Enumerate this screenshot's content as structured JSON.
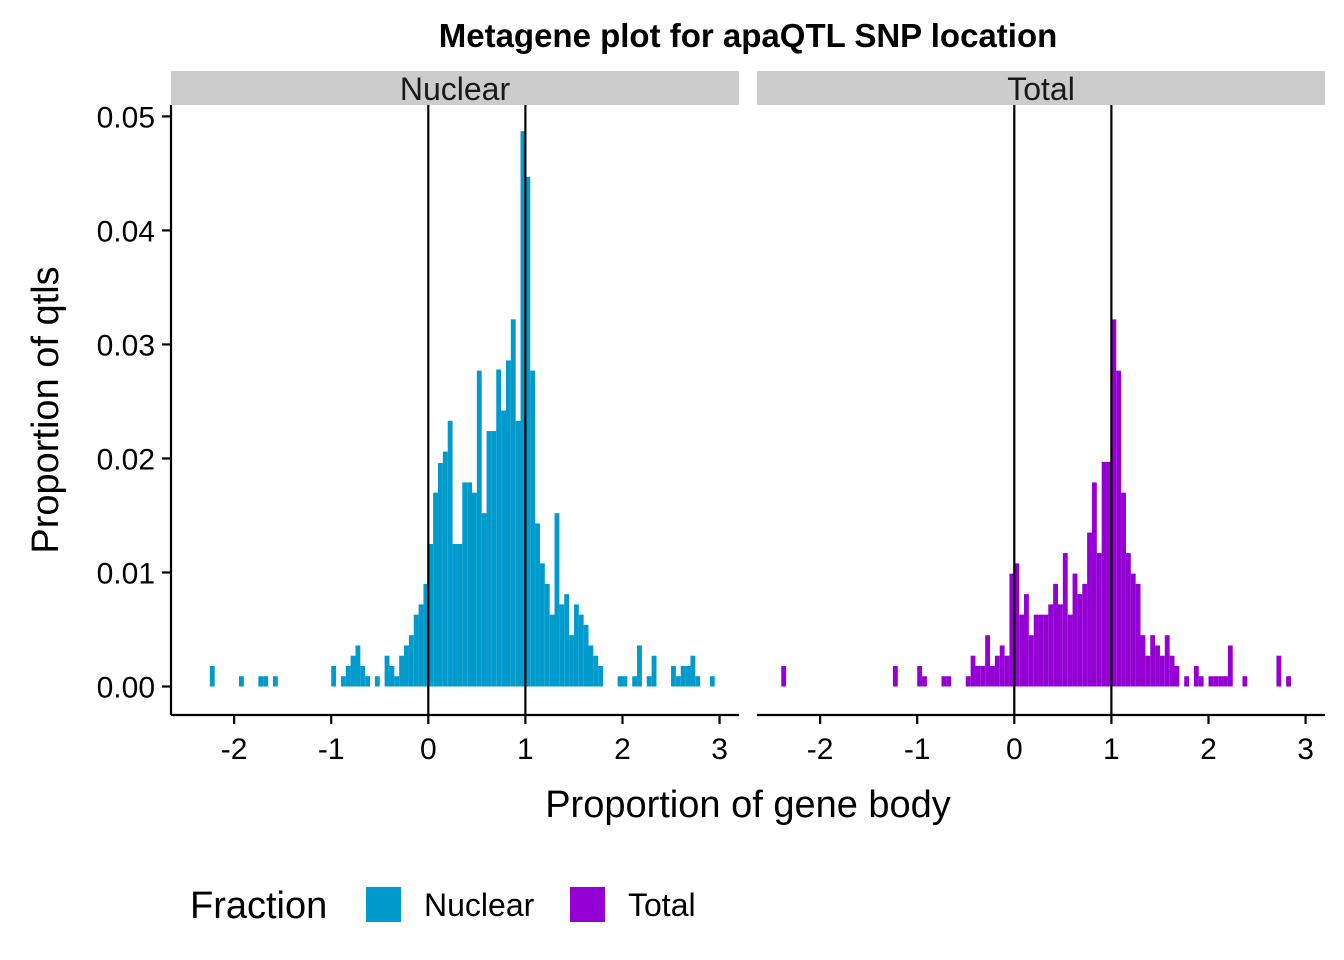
{
  "chart_data": {
    "type": "bar",
    "title": "Metagene plot for apaQTL SNP location",
    "xlabel": "Proportion of gene body",
    "ylabel": "Proportion of qtls",
    "xlim": [
      -2.65,
      3.2
    ],
    "ylim": [
      -0.0025,
      0.051
    ],
    "x_ticks": [
      -2,
      -1,
      0,
      1,
      2,
      3
    ],
    "x_tick_labels": [
      "-2",
      "-1",
      "0",
      "1",
      "2",
      "3"
    ],
    "y_ticks": [
      0,
      0.01,
      0.02,
      0.03,
      0.04,
      0.05
    ],
    "y_tick_labels": [
      "0.00",
      "0.01",
      "0.02",
      "0.03",
      "0.04",
      "0.05"
    ],
    "bin_width": 0.05,
    "vlines": [
      0,
      1
    ],
    "grid": false,
    "legend": {
      "title": "Fraction",
      "position": "bottom",
      "entries": [
        {
          "name": "Nuclear",
          "color": "#009ACD"
        },
        {
          "name": "Total",
          "color": "#9400D3"
        }
      ]
    },
    "panels": [
      {
        "strip": "Nuclear",
        "color": "#009ACD",
        "bins": [
          [
            -2.225,
            0.0018
          ],
          [
            -1.925,
            0.0009
          ],
          [
            -1.725,
            0.0009
          ],
          [
            -1.675,
            0.0009
          ],
          [
            -1.575,
            0.0009
          ],
          [
            -0.975,
            0.0018
          ],
          [
            -0.875,
            0.0009
          ],
          [
            -0.825,
            0.0018
          ],
          [
            -0.775,
            0.0027
          ],
          [
            -0.725,
            0.0036
          ],
          [
            -0.675,
            0.0018
          ],
          [
            -0.625,
            0.0009
          ],
          [
            -0.525,
            0.0009
          ],
          [
            -0.425,
            0.0027
          ],
          [
            -0.375,
            0.0018
          ],
          [
            -0.325,
            0.0009
          ],
          [
            -0.275,
            0.0027
          ],
          [
            -0.225,
            0.0036
          ],
          [
            -0.175,
            0.0045
          ],
          [
            -0.125,
            0.0063
          ],
          [
            -0.075,
            0.0072
          ],
          [
            -0.025,
            0.009
          ],
          [
            0.025,
            0.0125
          ],
          [
            0.075,
            0.017
          ],
          [
            0.125,
            0.0196
          ],
          [
            0.175,
            0.0206
          ],
          [
            0.225,
            0.0233
          ],
          [
            0.275,
            0.0125
          ],
          [
            0.325,
            0.0125
          ],
          [
            0.375,
            0.0179
          ],
          [
            0.425,
            0.0179
          ],
          [
            0.475,
            0.017
          ],
          [
            0.525,
            0.0277
          ],
          [
            0.575,
            0.0152
          ],
          [
            0.625,
            0.0224
          ],
          [
            0.675,
            0.0224
          ],
          [
            0.725,
            0.0278
          ],
          [
            0.775,
            0.0242
          ],
          [
            0.825,
            0.0286
          ],
          [
            0.875,
            0.0322
          ],
          [
            0.925,
            0.0233
          ],
          [
            0.975,
            0.0487
          ],
          [
            1.025,
            0.0447
          ],
          [
            1.075,
            0.0277
          ],
          [
            1.125,
            0.0143
          ],
          [
            1.175,
            0.0108
          ],
          [
            1.225,
            0.009
          ],
          [
            1.275,
            0.0063
          ],
          [
            1.325,
            0.0152
          ],
          [
            1.375,
            0.0072
          ],
          [
            1.425,
            0.0081
          ],
          [
            1.475,
            0.0045
          ],
          [
            1.525,
            0.0072
          ],
          [
            1.575,
            0.0063
          ],
          [
            1.625,
            0.0054
          ],
          [
            1.675,
            0.0036
          ],
          [
            1.725,
            0.0027
          ],
          [
            1.775,
            0.0018
          ],
          [
            1.975,
            0.0009
          ],
          [
            2.025,
            0.0009
          ],
          [
            2.125,
            0.0009
          ],
          [
            2.175,
            0.0036
          ],
          [
            2.275,
            0.0009
          ],
          [
            2.325,
            0.0027
          ],
          [
            2.525,
            0.0018
          ],
          [
            2.575,
            0.0009
          ],
          [
            2.625,
            0.0018
          ],
          [
            2.675,
            0.0018
          ],
          [
            2.725,
            0.0027
          ],
          [
            2.775,
            0.0009
          ],
          [
            2.925,
            0.0009
          ]
        ]
      },
      {
        "strip": "Total",
        "color": "#9400D3",
        "bins": [
          [
            -2.375,
            0.0018
          ],
          [
            -1.225,
            0.0018
          ],
          [
            -0.975,
            0.0018
          ],
          [
            -0.925,
            0.0009
          ],
          [
            -0.725,
            0.0009
          ],
          [
            -0.675,
            0.0009
          ],
          [
            -0.475,
            0.0009
          ],
          [
            -0.425,
            0.0027
          ],
          [
            -0.375,
            0.0018
          ],
          [
            -0.325,
            0.0018
          ],
          [
            -0.275,
            0.0045
          ],
          [
            -0.225,
            0.0018
          ],
          [
            -0.175,
            0.0027
          ],
          [
            -0.125,
            0.0036
          ],
          [
            -0.075,
            0.0027
          ],
          [
            -0.025,
            0.0099
          ],
          [
            0.025,
            0.0108
          ],
          [
            0.075,
            0.0063
          ],
          [
            0.125,
            0.0081
          ],
          [
            0.175,
            0.0045
          ],
          [
            0.225,
            0.0063
          ],
          [
            0.275,
            0.0063
          ],
          [
            0.325,
            0.0063
          ],
          [
            0.375,
            0.0072
          ],
          [
            0.425,
            0.009
          ],
          [
            0.475,
            0.0072
          ],
          [
            0.525,
            0.0117
          ],
          [
            0.575,
            0.0063
          ],
          [
            0.625,
            0.0099
          ],
          [
            0.675,
            0.0081
          ],
          [
            0.725,
            0.009
          ],
          [
            0.775,
            0.0135
          ],
          [
            0.825,
            0.0179
          ],
          [
            0.875,
            0.0117
          ],
          [
            0.925,
            0.0197
          ],
          [
            0.975,
            0.0197
          ],
          [
            1.025,
            0.0322
          ],
          [
            1.075,
            0.0277
          ],
          [
            1.125,
            0.017
          ],
          [
            1.175,
            0.0117
          ],
          [
            1.225,
            0.0099
          ],
          [
            1.275,
            0.009
          ],
          [
            1.325,
            0.0045
          ],
          [
            1.375,
            0.0027
          ],
          [
            1.425,
            0.0045
          ],
          [
            1.475,
            0.0036
          ],
          [
            1.525,
            0.0027
          ],
          [
            1.575,
            0.0045
          ],
          [
            1.625,
            0.0027
          ],
          [
            1.675,
            0.0018
          ],
          [
            1.775,
            0.0009
          ],
          [
            1.875,
            0.0018
          ],
          [
            1.925,
            0.0009
          ],
          [
            2.025,
            0.0009
          ],
          [
            2.075,
            0.0009
          ],
          [
            2.125,
            0.0009
          ],
          [
            2.175,
            0.0009
          ],
          [
            2.225,
            0.0036
          ],
          [
            2.375,
            0.0009
          ],
          [
            2.725,
            0.0027
          ],
          [
            2.825,
            0.0009
          ]
        ]
      }
    ]
  }
}
